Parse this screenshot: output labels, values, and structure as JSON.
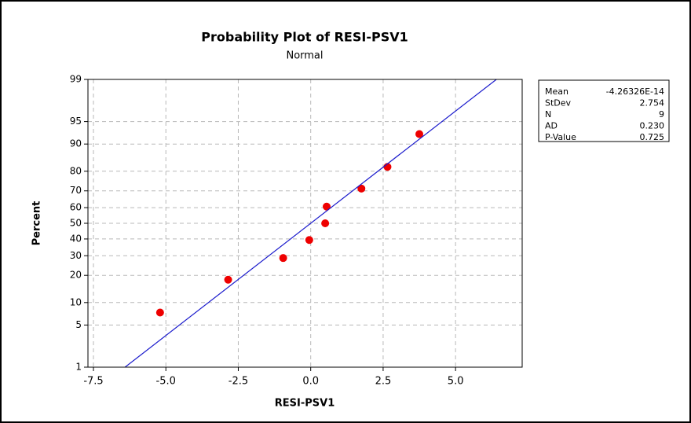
{
  "chart_data": {
    "type": "probability",
    "title": "Probability Plot of RESI-PSV1",
    "subtitle": "Normal",
    "x_label": "RESI-PSV1",
    "y_label": "Percent",
    "yscale": "normal",
    "xlim": [
      -7.69,
      7.3
    ],
    "ylim": [
      1,
      99
    ],
    "xticks": [
      {
        "value": -7.5,
        "label": "-7.5"
      },
      {
        "value": -5,
        "label": "-5.0"
      },
      {
        "value": -2.5,
        "label": "-2.5"
      },
      {
        "value": 0,
        "label": "0.0"
      },
      {
        "value": 2.5,
        "label": "2.5"
      },
      {
        "value": 5,
        "label": "5.0"
      }
    ],
    "yticks": [
      1,
      5,
      10,
      20,
      30,
      40,
      50,
      60,
      70,
      80,
      90,
      95,
      99
    ],
    "grid": true,
    "series": [
      {
        "name": "RESI-PSV1",
        "color": "#ee0000",
        "x": [
          -5.2,
          -2.85,
          -0.95,
          -0.05,
          0.5,
          0.55,
          1.75,
          2.65,
          3.75
        ],
        "values": [
          7.45,
          18.09,
          28.72,
          39.36,
          50,
          60.64,
          71.28,
          81.91,
          92.55
        ]
      },
      {
        "name": "Fit",
        "color": "#1a1acc",
        "kind": "line",
        "x": [
          -6.41,
          6.41
        ],
        "values": [
          1,
          99
        ]
      }
    ],
    "stats": [
      {
        "label": "Mean",
        "value": "-4.26326E-14"
      },
      {
        "label": "StDev",
        "value": "2.754"
      },
      {
        "label": "N",
        "value": "9"
      },
      {
        "label": "AD",
        "value": "0.230"
      },
      {
        "label": "P-Value",
        "value": "0.725"
      }
    ]
  }
}
